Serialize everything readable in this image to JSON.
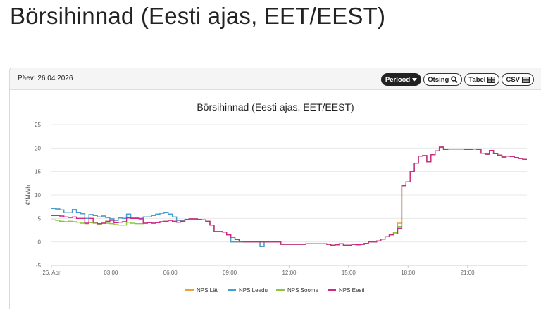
{
  "page": {
    "title": "Börsihinnad (Eesti ajas, EET/EEST)"
  },
  "panel": {
    "date_label": "Päev: 26.04.2026",
    "buttons": [
      {
        "label": "Perlood",
        "icon": "caret-down-icon",
        "style": "dark"
      },
      {
        "label": "Otsing",
        "icon": "magnifier-icon",
        "style": "light"
      },
      {
        "label": "Tabel",
        "icon": "table-icon",
        "style": "light"
      },
      {
        "label": "CSV",
        "icon": "table-icon",
        "style": "light"
      }
    ]
  },
  "colors": {
    "nps_lati": "#f0a030",
    "nps_leedu": "#3fa0d8",
    "nps_soome": "#8cc63e",
    "nps_eesti": "#d4248a",
    "grid": "#e8e8e8",
    "axis_text": "#666666"
  },
  "chart_data": {
    "type": "line",
    "step": true,
    "title": "Börsihinnad (Eesti ajas, EET/EEST)",
    "ylabel": "€/MWh",
    "xlabel": "",
    "ylim": [
      -5,
      25
    ],
    "y_ticks": [
      -5,
      0,
      5,
      10,
      15,
      20,
      25
    ],
    "xlim_hours": [
      0,
      24
    ],
    "x_ticks": [
      {
        "hour": 0,
        "label": "26. Apr"
      },
      {
        "hour": 3,
        "label": "03:00"
      },
      {
        "hour": 6,
        "label": "06:00"
      },
      {
        "hour": 9,
        "label": "09:00"
      },
      {
        "hour": 12,
        "label": "12:00"
      },
      {
        "hour": 15,
        "label": "15:00"
      },
      {
        "hour": 18,
        "label": "18:00"
      },
      {
        "hour": 21,
        "label": "21:00"
      }
    ],
    "grid": true,
    "legend_position": "bottom",
    "series": [
      {
        "name": "NPS Eesti",
        "color_key": "nps_eesti",
        "values": [
          5.6,
          5.6,
          5.5,
          5.3,
          5.2,
          5.3,
          5.0,
          5.0,
          4.0,
          5.0,
          4.2,
          3.9,
          4.0,
          4.4,
          4.6,
          4.1,
          4.2,
          4.3,
          5.1,
          5.0,
          5.0,
          4.9,
          4.0,
          4.1,
          4.0,
          4.1,
          4.3,
          4.4,
          4.6,
          4.4,
          4.2,
          4.4,
          4.8,
          4.9,
          4.9,
          4.8,
          4.7,
          4.4,
          3.6,
          2.2,
          2.2,
          2.1,
          1.5,
          1.0,
          0.5,
          0.1,
          0.0,
          0.0,
          0.0,
          0.0,
          0.0,
          0.0,
          0.0,
          0.0,
          0.0,
          -0.5,
          -0.5,
          -0.5,
          -0.5,
          -0.5,
          -0.5,
          -0.4,
          -0.4,
          -0.4,
          -0.4,
          -0.4,
          -0.5,
          -0.7,
          -0.6,
          -0.4,
          -0.7,
          -0.7,
          -0.5,
          -0.6,
          -0.5,
          -0.3,
          0.0,
          0.0,
          0.2,
          0.6,
          1.1,
          1.5,
          1.7,
          2.9,
          12.0,
          12.8,
          15.0,
          16.8,
          18.3,
          18.4,
          17.1,
          18.6,
          19.4,
          20.2,
          19.7,
          19.8,
          19.8,
          19.8,
          19.8,
          19.7,
          19.7,
          19.8,
          19.7,
          18.9,
          18.7,
          19.5,
          18.8,
          18.5,
          18.1,
          18.3,
          18.2,
          18.0,
          17.8,
          17.6
        ]
      },
      {
        "name": "NPS Leedu",
        "color_key": "nps_leedu",
        "values": [
          7.1,
          7.0,
          6.8,
          6.2,
          6.2,
          6.9,
          6.3,
          6.0,
          5.0,
          5.8,
          5.6,
          5.3,
          5.5,
          5.2,
          4.9,
          4.6,
          5.1,
          5.0,
          5.9,
          5.2,
          5.2,
          5.0,
          5.3,
          5.3,
          5.6,
          5.9,
          6.1,
          6.3,
          5.9,
          5.3,
          4.6,
          4.6,
          4.8,
          4.9,
          4.9,
          4.8,
          4.7,
          4.4,
          3.6,
          2.2,
          2.2,
          2.1,
          1.5,
          0.0,
          0.0,
          0.0,
          0.0,
          0.0,
          0.0,
          0.0,
          -1.0,
          0.0,
          0.0,
          0.0,
          0.0,
          -0.5,
          -0.5,
          -0.5,
          -0.5,
          -0.5,
          -0.5,
          -0.4,
          -0.4,
          -0.4,
          -0.4,
          -0.4,
          -0.5,
          -0.7,
          -0.6,
          -0.4,
          -0.7,
          -0.7,
          -0.5,
          -0.6,
          -0.5,
          -0.3,
          0.0,
          0.0,
          0.2,
          0.6,
          1.1,
          1.5,
          1.7,
          2.9,
          12.0,
          12.8,
          15.0,
          16.8,
          18.3,
          18.4,
          17.1,
          18.6,
          19.4,
          20.2,
          19.7,
          19.8,
          19.8,
          19.8,
          19.8,
          19.7,
          19.7,
          19.8,
          19.7,
          18.9,
          18.7,
          19.5,
          18.8,
          18.5,
          18.1,
          18.3,
          18.2,
          18.0,
          17.8,
          17.6
        ]
      },
      {
        "name": "NPS Soome",
        "color_key": "nps_soome",
        "values": [
          4.7,
          4.6,
          4.4,
          4.3,
          4.4,
          4.3,
          4.2,
          4.0,
          3.9,
          4.1,
          4.0,
          3.8,
          4.0,
          4.0,
          3.9,
          3.7,
          3.6,
          3.6,
          4.2,
          4.0,
          3.9,
          3.9,
          4.0,
          4.1,
          4.0,
          4.1,
          4.3,
          4.4,
          4.6,
          4.4,
          4.2,
          4.4,
          4.8,
          4.9,
          4.9,
          4.8,
          4.7,
          4.4,
          3.6,
          2.2,
          2.2,
          2.1,
          1.5,
          1.0,
          0.5,
          0.1,
          0.0,
          0.0,
          0.0,
          0.0,
          0.0,
          0.0,
          0.0,
          0.0,
          0.0,
          -0.5,
          -0.5,
          -0.5,
          -0.5,
          -0.5,
          -0.5,
          -0.4,
          -0.4,
          -0.4,
          -0.4,
          -0.4,
          -0.5,
          -0.7,
          -0.6,
          -0.4,
          -0.7,
          -0.7,
          -0.5,
          -0.6,
          -0.5,
          -0.3,
          0.0,
          0.0,
          0.2,
          0.6,
          1.1,
          1.5,
          2.0,
          3.3,
          12.0,
          12.8,
          15.0,
          16.8,
          18.3,
          18.4,
          17.1,
          18.6,
          19.4,
          20.2,
          19.7,
          19.8,
          19.8,
          19.8,
          19.8,
          19.7,
          19.7,
          19.8,
          19.7,
          18.9,
          18.7,
          19.5,
          18.8,
          18.5,
          18.1,
          18.3,
          18.2,
          18.0,
          17.8,
          17.6
        ]
      },
      {
        "name": "NPS Läti",
        "color_key": "nps_lati",
        "values": [
          7.1,
          7.0,
          6.8,
          6.2,
          6.2,
          6.9,
          6.3,
          6.0,
          5.0,
          5.8,
          5.6,
          5.3,
          5.5,
          5.2,
          4.9,
          4.6,
          5.1,
          5.0,
          5.9,
          5.2,
          5.2,
          5.0,
          5.3,
          5.3,
          5.6,
          5.9,
          6.1,
          6.3,
          5.9,
          5.3,
          4.6,
          4.6,
          4.8,
          4.9,
          4.9,
          4.8,
          4.7,
          4.4,
          3.6,
          2.2,
          2.2,
          2.1,
          1.5,
          0.0,
          0.0,
          0.0,
          0.0,
          0.0,
          0.0,
          0.0,
          -1.0,
          0.0,
          0.0,
          0.0,
          0.0,
          -0.5,
          -0.5,
          -0.5,
          -0.5,
          -0.5,
          -0.5,
          -0.4,
          -0.4,
          -0.4,
          -0.4,
          -0.4,
          -0.5,
          -0.7,
          -0.6,
          -0.4,
          -0.7,
          -0.7,
          -0.5,
          -0.6,
          -0.5,
          -0.3,
          0.0,
          0.0,
          0.2,
          0.6,
          1.1,
          1.5,
          2.0,
          4.0,
          12.0,
          12.8,
          15.0,
          16.8,
          18.3,
          18.4,
          17.1,
          18.6,
          19.4,
          20.2,
          19.7,
          19.8,
          19.8,
          19.8,
          19.8,
          19.7,
          19.7,
          19.8,
          19.7,
          18.9,
          18.7,
          19.5,
          18.8,
          18.5,
          18.1,
          18.3,
          18.2,
          18.0,
          17.8,
          17.6
        ]
      }
    ],
    "legend": [
      "NPS Läti",
      "NPS Leedu",
      "NPS Soome",
      "NPS Eesti"
    ]
  }
}
